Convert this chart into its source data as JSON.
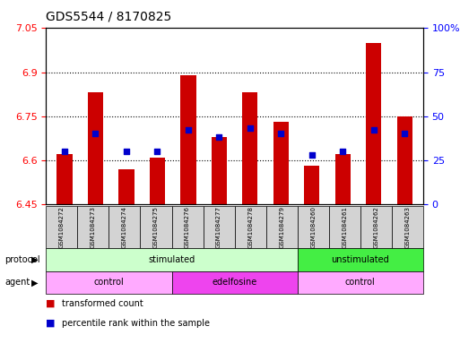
{
  "title": "GDS5544 / 8170825",
  "samples": [
    "GSM1084272",
    "GSM1084273",
    "GSM1084274",
    "GSM1084275",
    "GSM1084276",
    "GSM1084277",
    "GSM1084278",
    "GSM1084279",
    "GSM1084260",
    "GSM1084261",
    "GSM1084262",
    "GSM1084263"
  ],
  "bar_values": [
    6.62,
    6.83,
    6.57,
    6.61,
    6.89,
    6.68,
    6.83,
    6.73,
    6.58,
    6.62,
    7.0,
    6.75
  ],
  "percentile_values": [
    30,
    40,
    30,
    30,
    42,
    38,
    43,
    40,
    28,
    30,
    42,
    40
  ],
  "ylim_left": [
    6.45,
    7.05
  ],
  "ylim_right": [
    0,
    100
  ],
  "yticks_left": [
    6.45,
    6.6,
    6.75,
    6.9,
    7.05
  ],
  "yticks_right": [
    0,
    25,
    50,
    75,
    100
  ],
  "ytick_labels_left": [
    "6.45",
    "6.6",
    "6.75",
    "6.9",
    "7.05"
  ],
  "ytick_labels_right": [
    "0",
    "25",
    "50",
    "75",
    "100%"
  ],
  "bar_color": "#cc0000",
  "dot_color": "#0000cc",
  "bar_base": 6.45,
  "protocol_groups": [
    {
      "label": "stimulated",
      "start": 0,
      "end": 7,
      "color": "#ccffcc"
    },
    {
      "label": "unstimulated",
      "start": 8,
      "end": 11,
      "color": "#44ee44"
    }
  ],
  "agent_groups": [
    {
      "label": "control",
      "start": 0,
      "end": 3,
      "color": "#ffaaff"
    },
    {
      "label": "edelfosine",
      "start": 4,
      "end": 7,
      "color": "#ee44ee"
    },
    {
      "label": "control",
      "start": 8,
      "end": 11,
      "color": "#ffaaff"
    }
  ],
  "protocol_label": "protocol",
  "agent_label": "agent",
  "legend_bar_label": "transformed count",
  "legend_dot_label": "percentile rank within the sample",
  "grid_color": "#000000",
  "bg_color": "#ffffff",
  "plot_bg": "#ffffff",
  "spine_color": "#000000"
}
